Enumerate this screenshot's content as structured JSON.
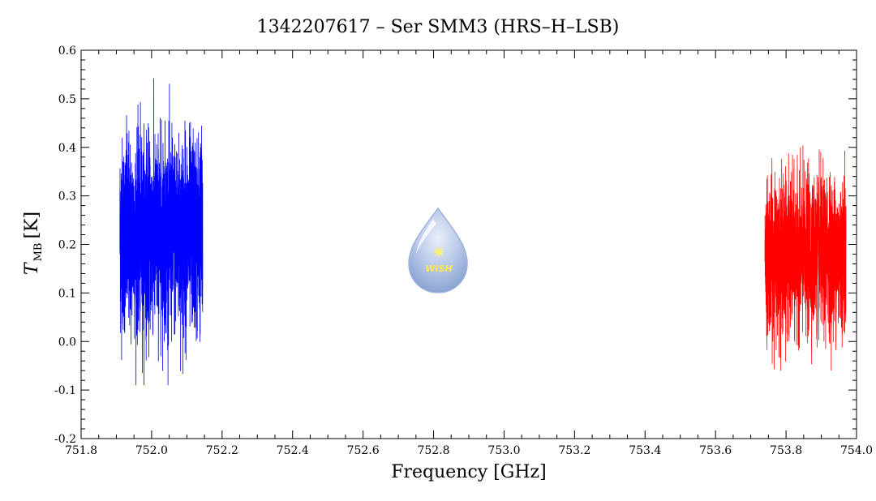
{
  "chart_data": {
    "type": "line",
    "title": "1342207617 – Ser SMM3 (HRS–H–LSB)",
    "xlabel": "Frequency [GHz]",
    "ylabel_main": "T",
    "ylabel_sub": "MB",
    "ylabel_unit": "[K]",
    "xlim": [
      751.8,
      754.0
    ],
    "ylim": [
      -0.2,
      0.6
    ],
    "x_ticks": [
      "751.8",
      "752.0",
      "752.2",
      "752.4",
      "752.6",
      "752.8",
      "753.0",
      "753.2",
      "753.4",
      "753.6",
      "753.8",
      "754.0"
    ],
    "y_ticks": [
      "-0.2",
      "-0.1",
      "0.0",
      "0.1",
      "0.2",
      "0.3",
      "0.4",
      "0.5",
      "0.6"
    ],
    "grid": false,
    "series": [
      {
        "color": "#0000ff",
        "x_range": [
          751.91,
          752.145
        ],
        "mean": 0.22,
        "min": -0.09,
        "max": 0.55
      },
      {
        "color": "#ff0000",
        "x_range": [
          753.74,
          753.97
        ],
        "mean": 0.18,
        "min": -0.06,
        "max": 0.43
      }
    ],
    "logo": {
      "text": "WISH"
    }
  }
}
